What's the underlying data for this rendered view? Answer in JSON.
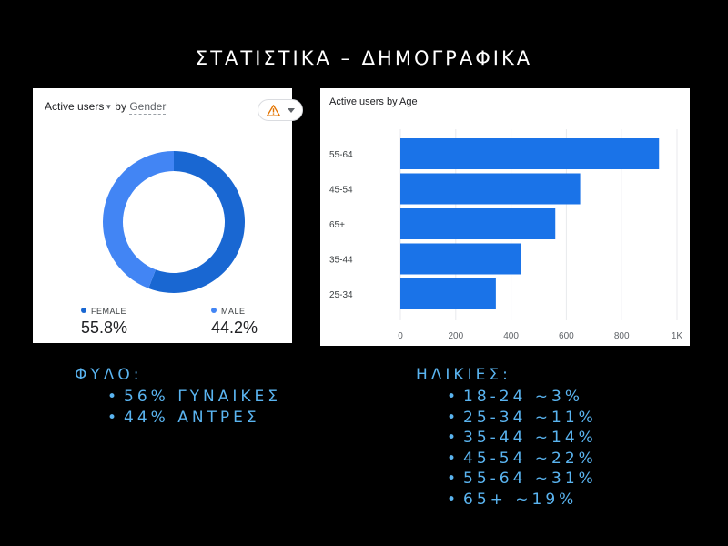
{
  "slide": {
    "title": "ΣΤΑΤΙΣΤΙΚΑ – ΔΗΜΟΓΡΑΦΙΚΑ"
  },
  "gender_card": {
    "title_metric": "Active users",
    "title_by": "by",
    "title_dimension": "Gender",
    "warning_icon": "warning-triangle-icon",
    "dropdown_icon": "caret-down-icon"
  },
  "age_card": {
    "title": "Active users by Age"
  },
  "colors": {
    "female": "#1967d2",
    "male": "#4285f4",
    "bar": "#1a73e8",
    "accent_text": "#5ab4f0",
    "warning": "#e37400"
  },
  "chart_data": [
    {
      "type": "pie",
      "title": "Active users by Gender",
      "categories": [
        "FEMALE",
        "MALE"
      ],
      "values": [
        55.8,
        44.2
      ],
      "labels": [
        "55.8%",
        "44.2%"
      ],
      "legend": "bottom"
    },
    {
      "type": "bar",
      "orientation": "horizontal",
      "title": "Active users by Age",
      "categories": [
        "55-64",
        "45-54",
        "65+",
        "35-44",
        "25-34"
      ],
      "values": [
        935,
        650,
        560,
        435,
        345
      ],
      "xlim": [
        0,
        1000
      ],
      "xticks": [
        "0",
        "200",
        "400",
        "600",
        "800",
        "1K"
      ],
      "grid": true
    }
  ],
  "gender_section": {
    "heading": "ΦΥΛΟ:",
    "items": [
      "56% ΓΥΝΑΙΚΕΣ",
      "44% ΑΝΤΡΕΣ"
    ]
  },
  "age_section": {
    "heading": "ΗΛΙΚΙΕΣ:",
    "items": [
      "18-24 ~3%",
      "25-34 ~11%",
      "35-44 ~14%",
      "45-54 ~22%",
      "55-64 ~31%",
      "65+ ~19%"
    ]
  }
}
